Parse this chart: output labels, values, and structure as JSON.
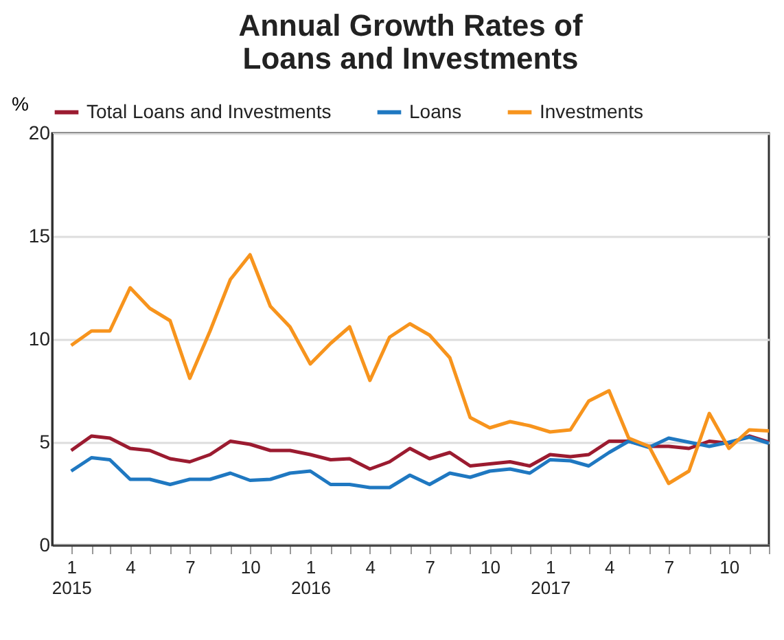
{
  "chart_data": {
    "type": "line",
    "title": "Annual Growth Rates of Loans and Investments",
    "ylabel": "%",
    "x": [
      "2015-01",
      "2015-02",
      "2015-03",
      "2015-04",
      "2015-05",
      "2015-06",
      "2015-07",
      "2015-08",
      "2015-09",
      "2015-10",
      "2015-11",
      "2015-12",
      "2016-01",
      "2016-02",
      "2016-03",
      "2016-04",
      "2016-05",
      "2016-06",
      "2016-07",
      "2016-08",
      "2016-09",
      "2016-10",
      "2016-11",
      "2016-12",
      "2017-01",
      "2017-02",
      "2017-03",
      "2017-04",
      "2017-05",
      "2017-06",
      "2017-07",
      "2017-08",
      "2017-09",
      "2017-10",
      "2017-11",
      "2017-12"
    ],
    "series": [
      {
        "name": "Total Loans and Investments",
        "color": "#9b1b30",
        "values": [
          4.6,
          5.3,
          5.2,
          4.7,
          4.6,
          4.2,
          4.05,
          4.4,
          5.05,
          4.9,
          4.6,
          4.6,
          4.4,
          4.15,
          4.2,
          3.7,
          4.05,
          4.7,
          4.2,
          4.5,
          3.85,
          3.95,
          4.05,
          3.85,
          4.4,
          4.3,
          4.4,
          5.05,
          5.05,
          4.8,
          4.8,
          4.7,
          5.05,
          4.95,
          5.3,
          5.0
        ]
      },
      {
        "name": "Loans",
        "color": "#1f78c1",
        "values": [
          3.6,
          4.25,
          4.15,
          3.2,
          3.2,
          2.95,
          3.2,
          3.2,
          3.5,
          3.15,
          3.2,
          3.5,
          3.6,
          2.95,
          2.95,
          2.8,
          2.8,
          3.4,
          2.95,
          3.5,
          3.3,
          3.6,
          3.7,
          3.5,
          4.15,
          4.1,
          3.85,
          4.5,
          5.05,
          4.75,
          5.2,
          5.0,
          4.8,
          5.0,
          5.25,
          4.95
        ]
      },
      {
        "name": "Investments",
        "color": "#f7941d",
        "values": [
          9.7,
          10.4,
          10.4,
          12.5,
          11.5,
          10.9,
          8.1,
          10.4,
          12.9,
          14.1,
          11.6,
          10.6,
          8.8,
          9.8,
          10.6,
          8.0,
          10.1,
          10.75,
          10.2,
          9.1,
          6.2,
          5.7,
          6.0,
          5.8,
          5.5,
          5.6,
          7.0,
          7.5,
          5.2,
          4.8,
          3.0,
          3.6,
          6.4,
          4.7,
          5.6,
          5.55
        ]
      }
    ],
    "xlim": [
      "2014-12-03",
      "2017-12"
    ],
    "xticks": [
      {
        "value": "2015-01",
        "label": "1\n2015"
      },
      {
        "value": "2015-02",
        "label": null
      },
      {
        "value": "2015-03",
        "label": null
      },
      {
        "value": "2015-04",
        "label": "4"
      },
      {
        "value": "2015-05",
        "label": null
      },
      {
        "value": "2015-06",
        "label": null
      },
      {
        "value": "2015-07",
        "label": "7"
      },
      {
        "value": "2015-08",
        "label": null
      },
      {
        "value": "2015-09",
        "label": null
      },
      {
        "value": "2015-10",
        "label": "10"
      },
      {
        "value": "2015-11",
        "label": null
      },
      {
        "value": "2015-12",
        "label": null
      },
      {
        "value": "2016-01",
        "label": "1\n2016"
      },
      {
        "value": "2016-02",
        "label": null
      },
      {
        "value": "2016-03",
        "label": null
      },
      {
        "value": "2016-04",
        "label": "4"
      },
      {
        "value": "2016-05",
        "label": null
      },
      {
        "value": "2016-06",
        "label": null
      },
      {
        "value": "2016-07",
        "label": "7"
      },
      {
        "value": "2016-08",
        "label": null
      },
      {
        "value": "2016-09",
        "label": null
      },
      {
        "value": "2016-10",
        "label": "10"
      },
      {
        "value": "2016-11",
        "label": null
      },
      {
        "value": "2016-12",
        "label": null
      },
      {
        "value": "2017-01",
        "label": "1\n2017"
      },
      {
        "value": "2017-02",
        "label": null
      },
      {
        "value": "2017-03",
        "label": null
      },
      {
        "value": "2017-04",
        "label": "4"
      },
      {
        "value": "2017-05",
        "label": null
      },
      {
        "value": "2017-06",
        "label": null
      },
      {
        "value": "2017-07",
        "label": "7"
      },
      {
        "value": "2017-08",
        "label": null
      },
      {
        "value": "2017-09",
        "label": null
      },
      {
        "value": "2017-10",
        "label": "10"
      },
      {
        "value": "2017-11",
        "label": null
      },
      {
        "value": "2017-12",
        "label": null
      }
    ],
    "ylim": [
      0,
      20
    ],
    "yticks": [
      0,
      5,
      10,
      15,
      20
    ],
    "grid": "y",
    "legend": "top",
    "line_style": "solid"
  }
}
